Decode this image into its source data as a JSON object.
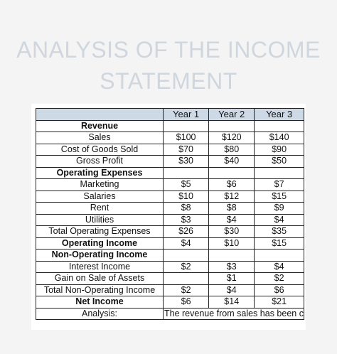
{
  "title_line1": "ANALYSIS OF THE INCOME",
  "title_line2": "STATEMENT",
  "header": {
    "label": "",
    "year1": "Year 1",
    "year2": "Year 2",
    "year3": "Year 3"
  },
  "rows": [
    {
      "label": "Revenue",
      "y1": "",
      "y2": "",
      "y3": ""
    },
    {
      "label": "Sales",
      "y1": "$100",
      "y2": "$120",
      "y3": "$140"
    },
    {
      "label": "Cost of Goods Sold",
      "y1": "$70",
      "y2": "$80",
      "y3": "$90"
    },
    {
      "label": "Gross Profit",
      "y1": "$30",
      "y2": "$40",
      "y3": "$50"
    },
    {
      "label": "Operating Expenses",
      "y1": "",
      "y2": "",
      "y3": ""
    },
    {
      "label": "Marketing",
      "y1": "$5",
      "y2": "$6",
      "y3": "$7"
    },
    {
      "label": "Salaries",
      "y1": "$10",
      "y2": "$12",
      "y3": "$15"
    },
    {
      "label": "Rent",
      "y1": "$8",
      "y2": "$8",
      "y3": "$9"
    },
    {
      "label": "Utilities",
      "y1": "$3",
      "y2": "$4",
      "y3": "$4"
    },
    {
      "label": "Total Operating Expenses",
      "y1": "$26",
      "y2": "$30",
      "y3": "$35"
    },
    {
      "label": "Operating Income",
      "y1": "$4",
      "y2": "$10",
      "y3": "$15"
    },
    {
      "label": "Non-Operating Income",
      "y1": "",
      "y2": "",
      "y3": ""
    },
    {
      "label": "Interest Income",
      "y1": "$2",
      "y2": "$3",
      "y3": "$4"
    },
    {
      "label": "Gain on Sale of Assets",
      "y1": "",
      "y2": "$1",
      "y3": "$2"
    },
    {
      "label": "Total Non-Operating Income",
      "y1": "$2",
      "y2": "$4",
      "y3": "$6"
    },
    {
      "label": "Net Income",
      "y1": "$6",
      "y2": "$14",
      "y3": "$21"
    }
  ],
  "analysis": {
    "label": "Analysis:",
    "text": "The revenue from sales has been c"
  }
}
